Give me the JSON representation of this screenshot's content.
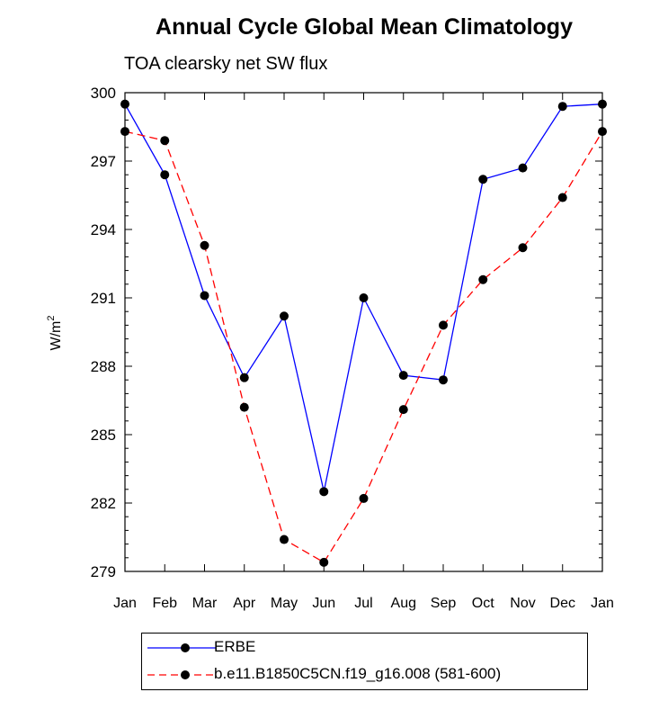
{
  "chart_data": {
    "type": "line",
    "title": "Annual Cycle Global Mean Climatology",
    "subtitle": "TOA clearsky net SW flux",
    "ylabel": "W/m",
    "ylabel_superscript": "2",
    "xlabel": "",
    "categories": [
      "Jan",
      "Feb",
      "Mar",
      "Apr",
      "May",
      "Jun",
      "Jul",
      "Aug",
      "Sep",
      "Oct",
      "Nov",
      "Dec",
      "Jan"
    ],
    "ylim": [
      279,
      300
    ],
    "yticks": [
      279,
      282,
      285,
      288,
      291,
      294,
      297,
      300
    ],
    "grid": false,
    "legend_position": "bottom",
    "series": [
      {
        "name": "ERBE",
        "color": "#0000ff",
        "style": "solid",
        "values": [
          299.5,
          296.4,
          291.1,
          287.5,
          290.2,
          282.5,
          291.0,
          287.6,
          287.4,
          296.2,
          296.7,
          299.4,
          299.5
        ]
      },
      {
        "name": "b.e11.B1850C5CN.f19_g16.008 (581-600)",
        "color": "#ff0000",
        "style": "dashed",
        "values": [
          298.3,
          297.9,
          293.3,
          286.2,
          280.4,
          279.4,
          282.2,
          286.1,
          289.8,
          291.8,
          293.2,
          295.4,
          298.3
        ]
      }
    ]
  }
}
